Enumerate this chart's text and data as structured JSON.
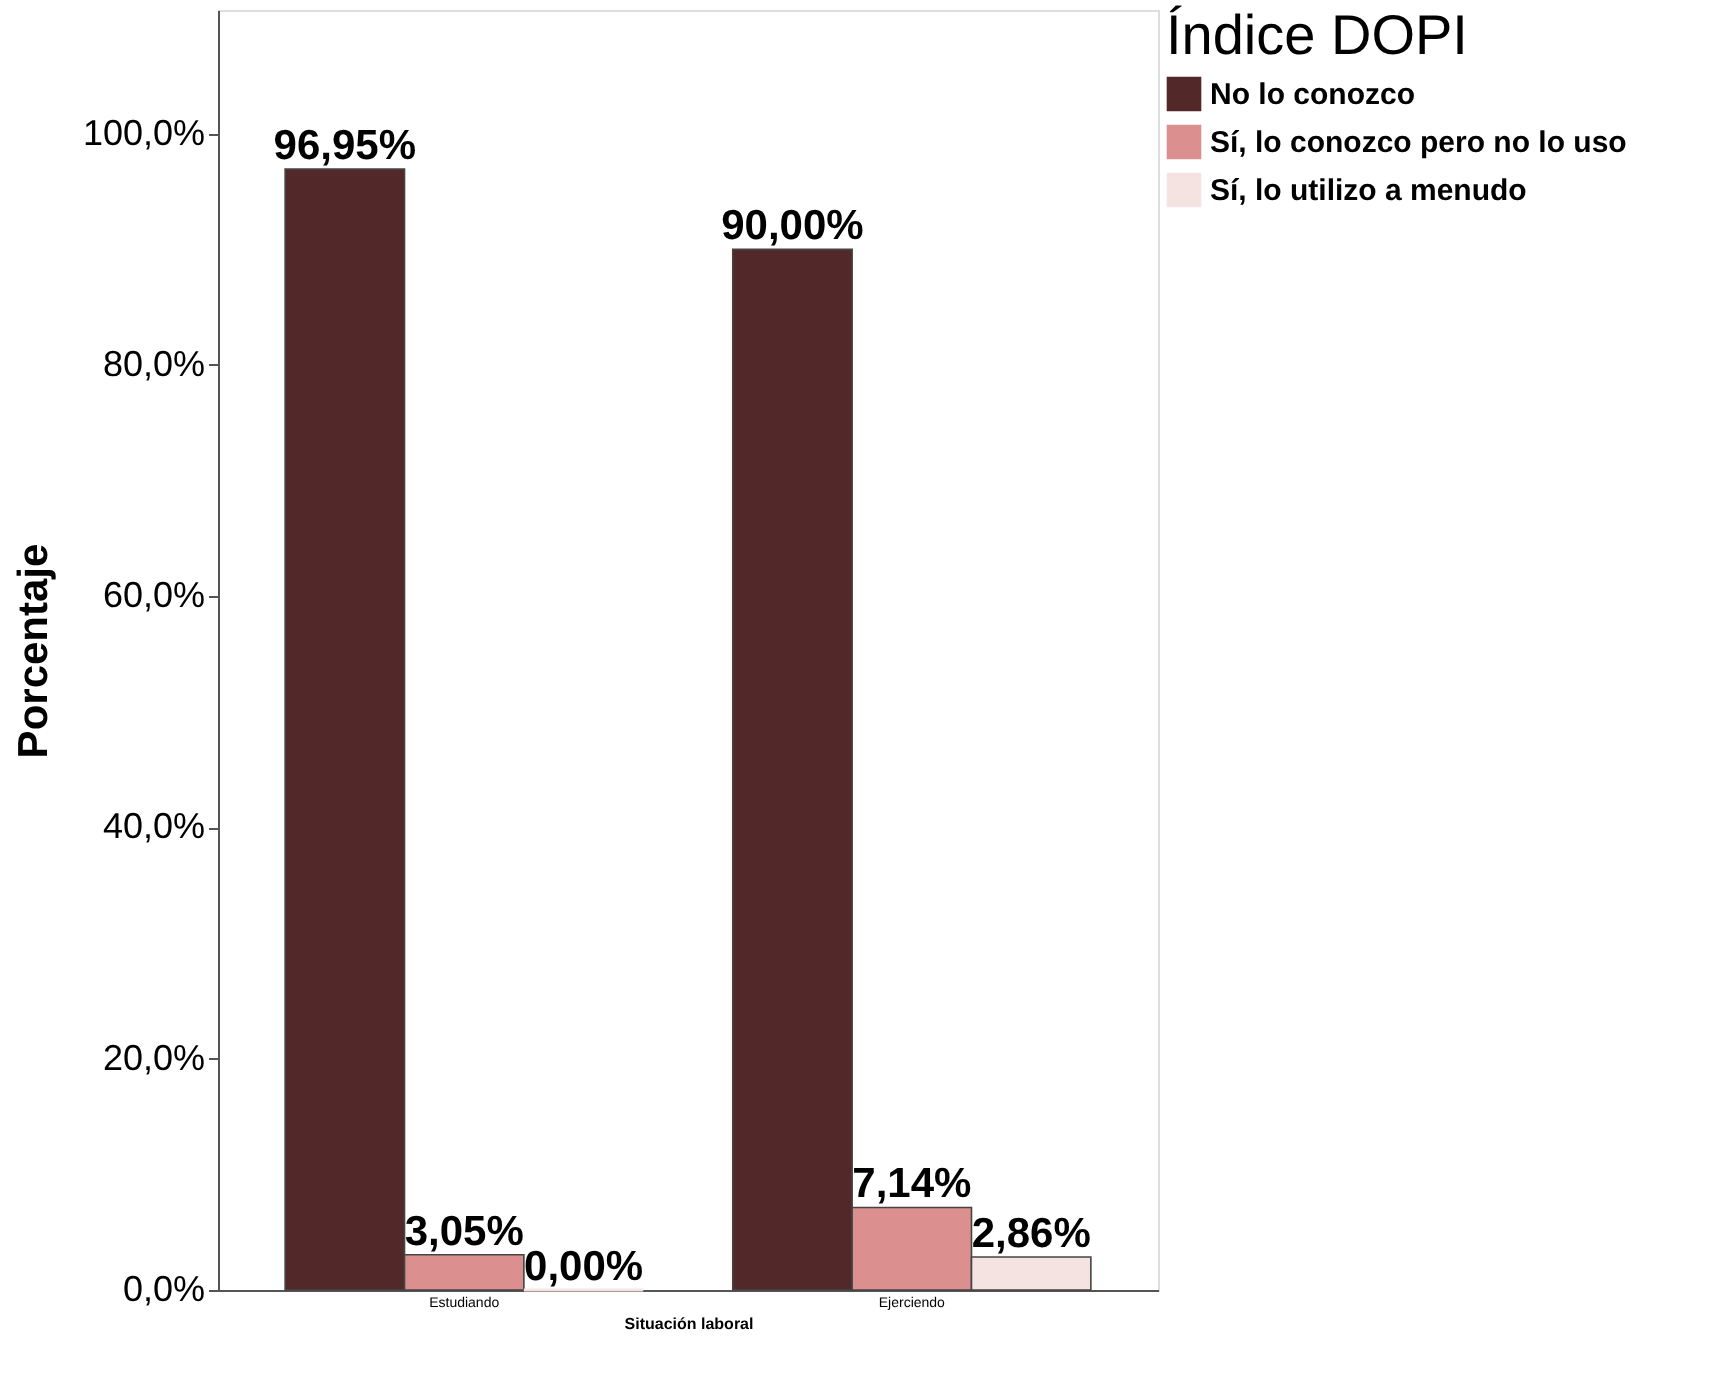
{
  "chart_data": {
    "type": "bar",
    "xlabel": "Situación laboral",
    "ylabel": "Porcentaje",
    "legend_title": "Índice DOPI",
    "categories": [
      "Estudiando",
      "Ejerciendo"
    ],
    "series": [
      {
        "name": "No lo conozco",
        "color": "#532828",
        "values": [
          96.95,
          90.0
        ],
        "value_labels": [
          "96,95%",
          "90,00%"
        ]
      },
      {
        "name": "Sí, lo conozco pero no lo uso",
        "color": "#dc8f8f",
        "values": [
          3.05,
          7.14
        ],
        "value_labels": [
          "3,05%",
          "7,14%"
        ]
      },
      {
        "name": "Sí, lo utilizo a menudo",
        "color": "#f5e3e2",
        "values": [
          0.0,
          2.86
        ],
        "value_labels": [
          "0,00%",
          "2,86%"
        ]
      }
    ],
    "ylim": [
      0,
      110.7
    ],
    "yticks": [
      {
        "value": 0,
        "label": "0,0%"
      },
      {
        "value": 20,
        "label": "20,0%"
      },
      {
        "value": 40,
        "label": "40,0%"
      },
      {
        "value": 60,
        "label": "60,0%"
      },
      {
        "value": 80,
        "label": "80,0%"
      },
      {
        "value": 100,
        "label": "100,0%"
      }
    ],
    "grid": false,
    "legend": "top right"
  }
}
